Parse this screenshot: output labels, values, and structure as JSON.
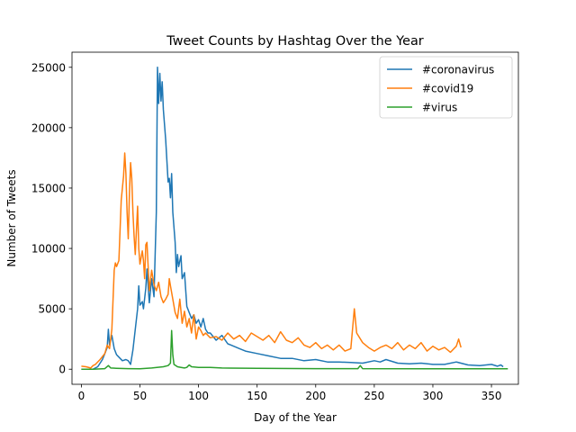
{
  "chart_data": {
    "type": "line",
    "title": "Tweet Counts by Hashtag Over the Year",
    "xlabel": "Day of the Year",
    "ylabel": "Number of Tweets",
    "xlim": [
      -8,
      373
    ],
    "ylim": [
      -1250,
      26250
    ],
    "xticks": [
      0,
      50,
      100,
      150,
      200,
      250,
      300,
      350
    ],
    "yticks": [
      0,
      5000,
      10000,
      15000,
      20000,
      25000
    ],
    "grid": false,
    "legend_position": "top-right",
    "series": [
      {
        "name": "#coronavirus",
        "color": "#1f77b4",
        "points": [
          [
            0,
            0
          ],
          [
            10,
            0
          ],
          [
            14,
            200
          ],
          [
            18,
            800
          ],
          [
            20,
            1300
          ],
          [
            22,
            1800
          ],
          [
            23,
            3300
          ],
          [
            24,
            2000
          ],
          [
            26,
            2800
          ],
          [
            28,
            1700
          ],
          [
            30,
            1200
          ],
          [
            32,
            1000
          ],
          [
            35,
            700
          ],
          [
            38,
            800
          ],
          [
            40,
            700
          ],
          [
            42,
            400
          ],
          [
            44,
            1600
          ],
          [
            46,
            3300
          ],
          [
            48,
            5000
          ],
          [
            49,
            6900
          ],
          [
            50,
            5300
          ],
          [
            52,
            5600
          ],
          [
            53,
            5000
          ],
          [
            55,
            6700
          ],
          [
            56,
            8300
          ],
          [
            58,
            5500
          ],
          [
            60,
            7500
          ],
          [
            62,
            6000
          ],
          [
            64,
            13000
          ],
          [
            65,
            25000
          ],
          [
            66,
            22000
          ],
          [
            67,
            24500
          ],
          [
            68,
            22200
          ],
          [
            69,
            23800
          ],
          [
            70,
            21500
          ],
          [
            72,
            19000
          ],
          [
            74,
            15500
          ],
          [
            75,
            15800
          ],
          [
            76,
            14200
          ],
          [
            77,
            16200
          ],
          [
            78,
            13000
          ],
          [
            80,
            10500
          ],
          [
            81,
            8000
          ],
          [
            82,
            9500
          ],
          [
            83,
            8500
          ],
          [
            85,
            9400
          ],
          [
            86,
            7500
          ],
          [
            88,
            8000
          ],
          [
            90,
            5200
          ],
          [
            92,
            4700
          ],
          [
            94,
            4200
          ],
          [
            96,
            4500
          ],
          [
            98,
            3800
          ],
          [
            100,
            4100
          ],
          [
            102,
            3500
          ],
          [
            104,
            4200
          ],
          [
            106,
            3300
          ],
          [
            108,
            3000
          ],
          [
            110,
            3000
          ],
          [
            115,
            2400
          ],
          [
            120,
            2800
          ],
          [
            125,
            2100
          ],
          [
            130,
            1900
          ],
          [
            135,
            1700
          ],
          [
            140,
            1500
          ],
          [
            150,
            1300
          ],
          [
            160,
            1100
          ],
          [
            170,
            900
          ],
          [
            180,
            900
          ],
          [
            190,
            700
          ],
          [
            200,
            800
          ],
          [
            210,
            600
          ],
          [
            220,
            600
          ],
          [
            230,
            550
          ],
          [
            240,
            500
          ],
          [
            250,
            700
          ],
          [
            255,
            600
          ],
          [
            260,
            800
          ],
          [
            270,
            500
          ],
          [
            280,
            450
          ],
          [
            290,
            500
          ],
          [
            300,
            400
          ],
          [
            310,
            400
          ],
          [
            320,
            600
          ],
          [
            330,
            350
          ],
          [
            340,
            300
          ],
          [
            350,
            400
          ],
          [
            355,
            250
          ],
          [
            358,
            350
          ],
          [
            360,
            200
          ]
        ]
      },
      {
        "name": "#covid19",
        "color": "#ff7f0e",
        "points": [
          [
            0,
            250
          ],
          [
            4,
            200
          ],
          [
            8,
            100
          ],
          [
            10,
            300
          ],
          [
            12,
            400
          ],
          [
            16,
            800
          ],
          [
            20,
            1300
          ],
          [
            22,
            2000
          ],
          [
            24,
            1700
          ],
          [
            26,
            3300
          ],
          [
            28,
            8200
          ],
          [
            29,
            8800
          ],
          [
            30,
            8500
          ],
          [
            32,
            9000
          ],
          [
            33,
            11500
          ],
          [
            34,
            14000
          ],
          [
            35,
            15000
          ],
          [
            36,
            16000
          ],
          [
            37,
            17900
          ],
          [
            38,
            16200
          ],
          [
            39,
            13000
          ],
          [
            40,
            10800
          ],
          [
            41,
            14500
          ],
          [
            42,
            17100
          ],
          [
            43,
            15800
          ],
          [
            44,
            13000
          ],
          [
            45,
            11000
          ],
          [
            46,
            9500
          ],
          [
            48,
            13500
          ],
          [
            49,
            10000
          ],
          [
            50,
            8700
          ],
          [
            52,
            9800
          ],
          [
            53,
            9000
          ],
          [
            54,
            7500
          ],
          [
            55,
            10300
          ],
          [
            56,
            10500
          ],
          [
            58,
            6500
          ],
          [
            60,
            8200
          ],
          [
            62,
            7000
          ],
          [
            64,
            6500
          ],
          [
            66,
            7200
          ],
          [
            68,
            6000
          ],
          [
            70,
            5500
          ],
          [
            72,
            5800
          ],
          [
            74,
            6200
          ],
          [
            75,
            7500
          ],
          [
            76,
            6900
          ],
          [
            78,
            5800
          ],
          [
            80,
            4700
          ],
          [
            82,
            4200
          ],
          [
            84,
            5800
          ],
          [
            86,
            3800
          ],
          [
            88,
            4800
          ],
          [
            90,
            3500
          ],
          [
            92,
            4200
          ],
          [
            94,
            3000
          ],
          [
            96,
            4500
          ],
          [
            98,
            2500
          ],
          [
            100,
            3500
          ],
          [
            102,
            3200
          ],
          [
            104,
            2800
          ],
          [
            106,
            3000
          ],
          [
            110,
            2600
          ],
          [
            115,
            2700
          ],
          [
            120,
            2400
          ],
          [
            125,
            3000
          ],
          [
            130,
            2500
          ],
          [
            135,
            2800
          ],
          [
            140,
            2300
          ],
          [
            145,
            3000
          ],
          [
            150,
            2700
          ],
          [
            155,
            2400
          ],
          [
            160,
            2800
          ],
          [
            165,
            2200
          ],
          [
            170,
            3100
          ],
          [
            175,
            2400
          ],
          [
            180,
            2200
          ],
          [
            185,
            2600
          ],
          [
            190,
            2000
          ],
          [
            195,
            1800
          ],
          [
            200,
            2200
          ],
          [
            205,
            1700
          ],
          [
            210,
            2000
          ],
          [
            215,
            1600
          ],
          [
            220,
            2000
          ],
          [
            225,
            1500
          ],
          [
            230,
            1700
          ],
          [
            233,
            5000
          ],
          [
            235,
            3000
          ],
          [
            240,
            2200
          ],
          [
            245,
            1800
          ],
          [
            250,
            1500
          ],
          [
            255,
            1800
          ],
          [
            260,
            2000
          ],
          [
            265,
            1700
          ],
          [
            270,
            2200
          ],
          [
            275,
            1600
          ],
          [
            280,
            2000
          ],
          [
            285,
            1700
          ],
          [
            290,
            2200
          ],
          [
            295,
            1500
          ],
          [
            300,
            1900
          ],
          [
            305,
            1600
          ],
          [
            310,
            1800
          ],
          [
            315,
            1400
          ],
          [
            320,
            1900
          ],
          [
            322,
            2500
          ],
          [
            324,
            1800
          ]
        ]
      },
      {
        "name": "#virus",
        "color": "#2ca02c",
        "points": [
          [
            0,
            0
          ],
          [
            10,
            0
          ],
          [
            20,
            50
          ],
          [
            23,
            300
          ],
          [
            25,
            100
          ],
          [
            30,
            80
          ],
          [
            40,
            50
          ],
          [
            50,
            30
          ],
          [
            60,
            100
          ],
          [
            70,
            200
          ],
          [
            74,
            300
          ],
          [
            76,
            500
          ],
          [
            77,
            3200
          ],
          [
            78,
            1200
          ],
          [
            79,
            400
          ],
          [
            82,
            200
          ],
          [
            85,
            150
          ],
          [
            88,
            100
          ],
          [
            90,
            150
          ],
          [
            92,
            350
          ],
          [
            94,
            200
          ],
          [
            100,
            150
          ],
          [
            110,
            150
          ],
          [
            120,
            100
          ],
          [
            150,
            80
          ],
          [
            200,
            50
          ],
          [
            236,
            50
          ],
          [
            238,
            300
          ],
          [
            240,
            50
          ],
          [
            300,
            30
          ],
          [
            364,
            30
          ]
        ]
      }
    ]
  }
}
